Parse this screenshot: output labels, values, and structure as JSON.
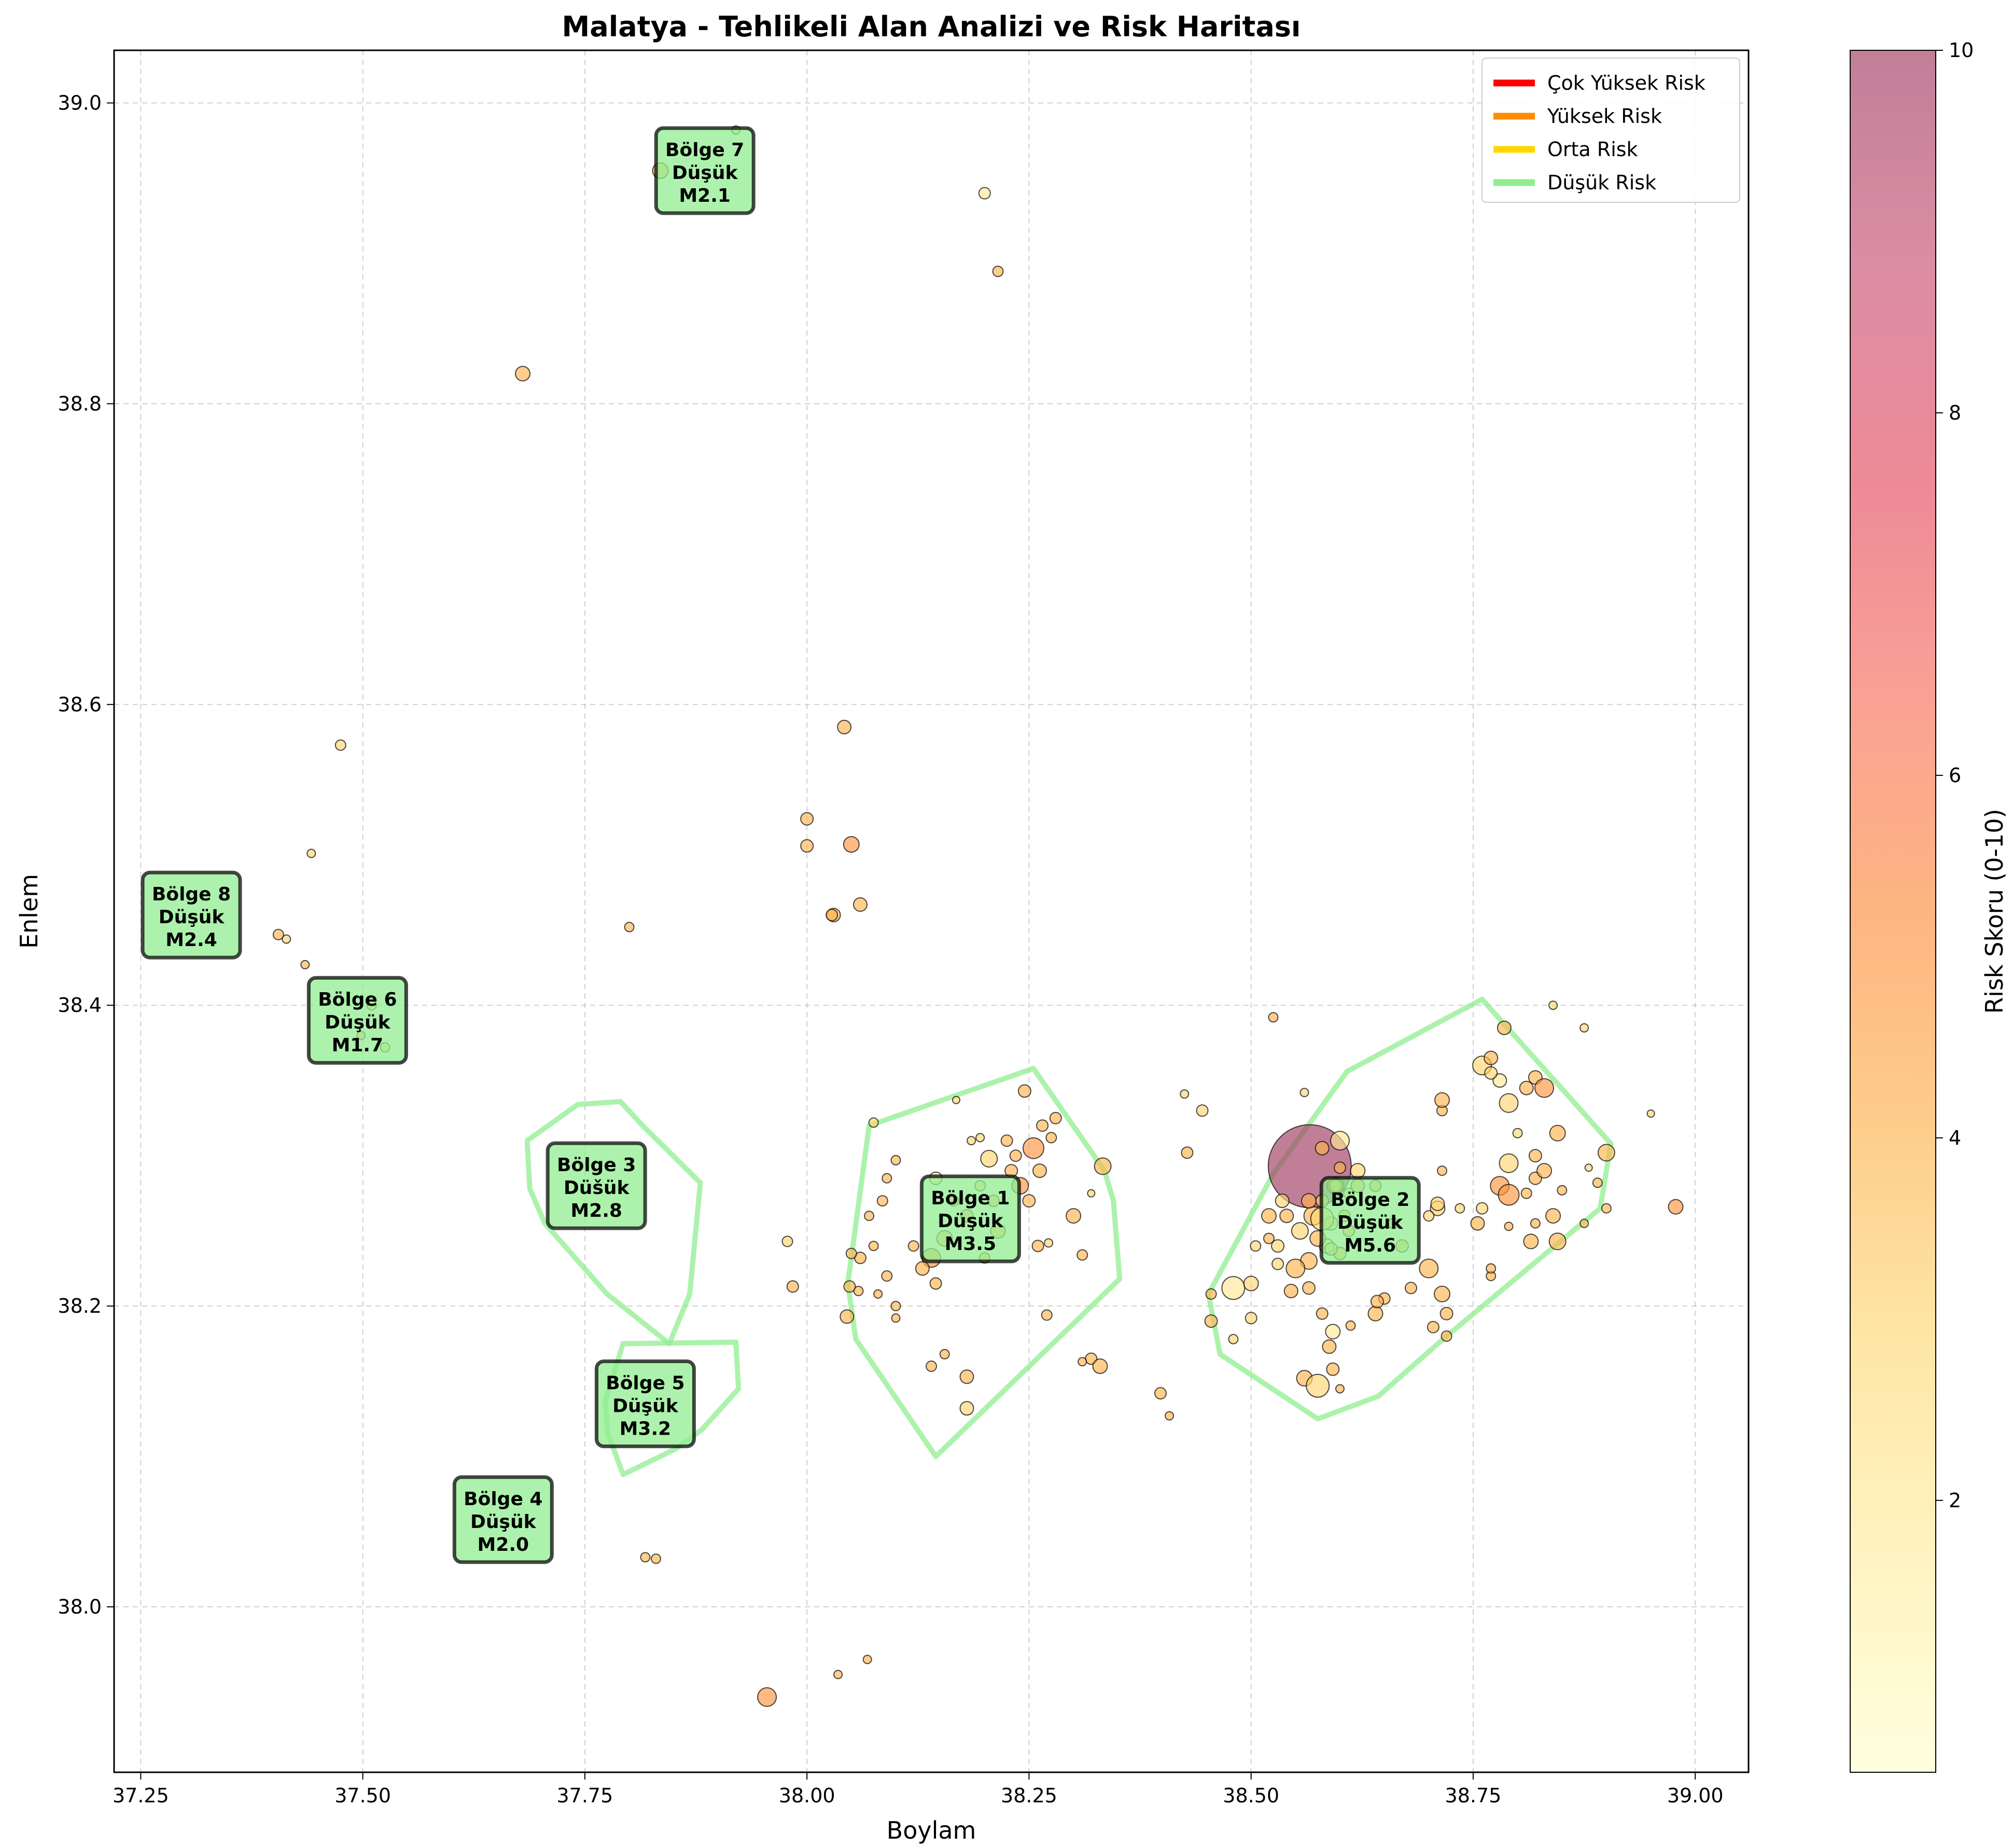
{
  "chart_data": {
    "type": "scatter",
    "title": "Malatya - Tehlikeli Alan Analizi ve Risk Haritası",
    "xlabel": "Boylam",
    "ylabel": "Enlem",
    "xlim": [
      37.22,
      39.06
    ],
    "ylim": [
      37.89,
      39.035
    ],
    "xticks": [
      "37.25",
      "37.50",
      "37.75",
      "38.00",
      "38.25",
      "38.50",
      "38.75",
      "39.00"
    ],
    "yticks": [
      "38.0",
      "38.2",
      "38.4",
      "38.6",
      "38.8",
      "39.0"
    ],
    "grid": true,
    "legend": {
      "placement": "top-right",
      "entries": [
        {
          "label": "Çok Yüksek Risk",
          "color": "#ff0000"
        },
        {
          "label": "Yüksek Risk",
          "color": "#ff8c00"
        },
        {
          "label": "Orta Risk",
          "color": "#ffd700"
        },
        {
          "label": "Düşük Risk",
          "color": "#90ee90"
        }
      ]
    },
    "colorbar": {
      "label": "Risk Skoru (0-10)",
      "min": 0.5,
      "max": 10,
      "ticks": [
        "2",
        "4",
        "6",
        "8",
        "10"
      ],
      "tick_values": [
        2,
        4,
        6,
        8,
        10
      ],
      "colors": [
        "#ffffcc",
        "#ffeda0",
        "#fed976",
        "#feb24c",
        "#fd8d3c",
        "#f76e5c",
        "#e34a5f",
        "#c75072",
        "#a03a60"
      ]
    },
    "regions": [
      {
        "label": "Bölge 1",
        "risk": "Düşük",
        "mag": "M3.5",
        "x": 38.184,
        "y": 38.258,
        "hull": [
          [
            38.07,
            38.32
          ],
          [
            38.255,
            38.358
          ],
          [
            38.335,
            38.29
          ],
          [
            38.345,
            38.27
          ],
          [
            38.352,
            38.218
          ],
          [
            38.145,
            38.1
          ],
          [
            38.055,
            38.178
          ],
          [
            38.046,
            38.215
          ]
        ]
      },
      {
        "label": "Bölge 2",
        "risk": "Düşük",
        "mag": "M5.6",
        "x": 38.634,
        "y": 38.257,
        "hull": [
          [
            38.608,
            38.356
          ],
          [
            38.76,
            38.404
          ],
          [
            38.905,
            38.308
          ],
          [
            38.893,
            38.265
          ],
          [
            38.72,
            38.18
          ],
          [
            38.643,
            38.14
          ],
          [
            38.575,
            38.125
          ],
          [
            38.465,
            38.168
          ],
          [
            38.452,
            38.208
          ],
          [
            38.525,
            38.288
          ]
        ]
      },
      {
        "label": "Bölge 3",
        "risk": "Düšük",
        "mag": "M2.8",
        "x": 37.763,
        "y": 38.28,
        "hull": [
          [
            37.685,
            38.31
          ],
          [
            37.742,
            38.334
          ],
          [
            37.79,
            38.336
          ],
          [
            37.815,
            38.32
          ],
          [
            37.88,
            38.282
          ],
          [
            37.868,
            38.208
          ],
          [
            37.845,
            38.175
          ],
          [
            37.775,
            38.208
          ],
          [
            37.705,
            38.255
          ],
          [
            37.688,
            38.278
          ]
        ]
      },
      {
        "label": "Bölge 4",
        "risk": "Düşük",
        "mag": "M2.0",
        "x": 37.658,
        "y": 38.058
      },
      {
        "label": "Bölge 5",
        "risk": "Düşük",
        "mag": "M3.2",
        "x": 37.818,
        "y": 38.135,
        "hull": [
          [
            37.793,
            38.175
          ],
          [
            37.92,
            38.176
          ],
          [
            37.923,
            38.145
          ],
          [
            37.882,
            38.118
          ],
          [
            37.852,
            38.105
          ],
          [
            37.793,
            38.088
          ],
          [
            37.776,
            38.115
          ],
          [
            37.773,
            38.137
          ]
        ]
      },
      {
        "label": "Bölge 6",
        "risk": "Düşük",
        "mag": "M1.7",
        "x": 37.494,
        "y": 38.39
      },
      {
        "label": "Bölge 7",
        "risk": "Düşük",
        "mag": "M2.1",
        "x": 37.885,
        "y": 38.955
      },
      {
        "label": "Bölge 8",
        "risk": "Düşük",
        "mag": "M2.4",
        "x": 37.307,
        "y": 38.46
      }
    ],
    "points": [
      [
        38.566,
        38.293,
        10,
        80
      ],
      [
        38.2,
        38.94,
        2,
        11
      ],
      [
        38.215,
        38.888,
        4,
        10
      ],
      [
        37.68,
        38.82,
        4,
        14
      ],
      [
        37.92,
        38.982,
        3,
        8
      ],
      [
        37.835,
        38.955,
        4,
        15
      ],
      [
        37.475,
        38.573,
        3,
        10
      ],
      [
        37.442,
        38.501,
        3,
        8
      ],
      [
        37.405,
        38.447,
        4,
        10
      ],
      [
        37.414,
        38.444,
        3,
        8
      ],
      [
        37.435,
        38.427,
        4,
        8
      ],
      [
        37.51,
        38.4,
        3,
        9
      ],
      [
        37.525,
        38.372,
        3,
        9
      ],
      [
        37.498,
        38.38,
        4,
        8
      ],
      [
        38.042,
        38.585,
        4,
        13
      ],
      [
        38.0,
        38.524,
        4,
        12
      ],
      [
        38.0,
        38.506,
        4,
        12
      ],
      [
        38.05,
        38.507,
        5,
        15
      ],
      [
        38.06,
        38.467,
        4,
        13
      ],
      [
        38.03,
        38.46,
        4,
        13
      ],
      [
        38.028,
        38.46,
        4,
        11
      ],
      [
        37.8,
        38.452,
        4,
        9
      ],
      [
        37.978,
        38.243,
        3,
        10
      ],
      [
        37.984,
        38.213,
        4,
        11
      ],
      [
        37.955,
        37.94,
        5,
        18
      ],
      [
        38.035,
        37.955,
        4,
        8
      ],
      [
        38.068,
        37.965,
        4,
        8
      ],
      [
        37.818,
        38.033,
        4,
        9
      ],
      [
        37.83,
        38.032,
        4,
        9
      ],
      [
        38.398,
        38.142,
        4,
        11
      ],
      [
        38.408,
        38.127,
        4,
        8
      ],
      [
        38.428,
        38.302,
        4,
        11
      ],
      [
        38.445,
        38.33,
        3,
        11
      ],
      [
        38.425,
        38.341,
        3,
        8
      ],
      [
        38.525,
        38.392,
        4,
        9
      ],
      [
        38.84,
        38.4,
        3,
        8
      ],
      [
        38.875,
        38.385,
        3,
        8
      ],
      [
        38.95,
        38.328,
        3,
        7
      ],
      [
        38.978,
        38.266,
        5,
        14
      ],
      [
        38.145,
        38.285,
        2,
        12
      ],
      [
        38.165,
        38.27,
        4,
        10
      ],
      [
        38.155,
        38.245,
        4,
        15
      ],
      [
        38.14,
        38.232,
        5,
        18
      ],
      [
        38.13,
        38.225,
        4,
        13
      ],
      [
        38.12,
        38.24,
        4,
        10
      ],
      [
        38.18,
        38.26,
        4,
        12
      ],
      [
        38.195,
        38.28,
        3,
        10
      ],
      [
        38.21,
        38.27,
        4,
        11
      ],
      [
        38.215,
        38.25,
        4,
        14
      ],
      [
        38.23,
        38.29,
        4,
        12
      ],
      [
        38.235,
        38.3,
        4,
        11
      ],
      [
        38.24,
        38.28,
        5,
        16
      ],
      [
        38.25,
        38.27,
        4,
        12
      ],
      [
        38.255,
        38.305,
        5,
        20
      ],
      [
        38.262,
        38.29,
        4,
        13
      ],
      [
        38.245,
        38.343,
        4,
        12
      ],
      [
        38.225,
        38.31,
        4,
        11
      ],
      [
        38.205,
        38.298,
        3,
        16
      ],
      [
        38.185,
        38.31,
        3,
        8
      ],
      [
        38.168,
        38.337,
        3,
        7
      ],
      [
        38.1,
        38.297,
        4,
        9
      ],
      [
        38.09,
        38.285,
        4,
        9
      ],
      [
        38.085,
        38.27,
        4,
        10
      ],
      [
        38.07,
        38.26,
        4,
        9
      ],
      [
        38.075,
        38.24,
        4,
        9
      ],
      [
        38.06,
        38.232,
        4,
        11
      ],
      [
        38.058,
        38.21,
        4,
        9
      ],
      [
        38.048,
        38.213,
        4,
        11
      ],
      [
        38.09,
        38.22,
        4,
        10
      ],
      [
        38.1,
        38.192,
        4,
        8
      ],
      [
        38.1,
        38.2,
        4,
        9
      ],
      [
        38.08,
        38.208,
        4,
        8
      ],
      [
        38.075,
        38.322,
        3,
        9
      ],
      [
        38.2,
        38.232,
        4,
        10
      ],
      [
        38.26,
        38.24,
        4,
        11
      ],
      [
        38.272,
        38.242,
        3,
        8
      ],
      [
        38.27,
        38.194,
        4,
        10
      ],
      [
        38.3,
        38.26,
        4,
        14
      ],
      [
        38.31,
        38.234,
        4,
        10
      ],
      [
        38.32,
        38.275,
        3,
        7
      ],
      [
        38.333,
        38.293,
        4,
        16
      ],
      [
        38.32,
        38.165,
        4,
        11
      ],
      [
        38.31,
        38.163,
        4,
        8
      ],
      [
        38.33,
        38.16,
        4,
        14
      ],
      [
        38.18,
        38.153,
        4,
        13
      ],
      [
        38.18,
        38.132,
        3,
        13
      ],
      [
        38.14,
        38.16,
        4,
        10
      ],
      [
        38.155,
        38.168,
        4,
        9
      ],
      [
        38.045,
        38.193,
        4,
        13
      ],
      [
        38.05,
        38.235,
        4,
        10
      ],
      [
        38.28,
        38.325,
        4,
        11
      ],
      [
        38.275,
        38.312,
        4,
        10
      ],
      [
        38.265,
        38.32,
        4,
        11
      ],
      [
        38.195,
        38.312,
        3,
        8
      ],
      [
        38.145,
        38.215,
        4,
        11
      ],
      [
        38.58,
        38.305,
        4,
        13
      ],
      [
        38.6,
        38.31,
        2,
        18
      ],
      [
        38.62,
        38.28,
        4,
        13
      ],
      [
        38.595,
        38.28,
        4,
        16
      ],
      [
        38.58,
        38.27,
        3,
        12
      ],
      [
        38.57,
        38.26,
        4,
        18
      ],
      [
        38.555,
        38.25,
        3,
        16
      ],
      [
        38.54,
        38.26,
        4,
        13
      ],
      [
        38.53,
        38.24,
        3,
        12
      ],
      [
        38.565,
        38.23,
        4,
        16
      ],
      [
        38.585,
        38.24,
        2,
        14
      ],
      [
        38.6,
        38.235,
        4,
        12
      ],
      [
        38.61,
        38.25,
        4,
        11
      ],
      [
        38.59,
        38.255,
        3,
        13
      ],
      [
        38.575,
        38.245,
        4,
        15
      ],
      [
        38.55,
        38.225,
        4,
        18
      ],
      [
        38.565,
        38.212,
        4,
        12
      ],
      [
        38.58,
        38.195,
        4,
        11
      ],
      [
        38.592,
        38.183,
        2,
        14
      ],
      [
        38.588,
        38.173,
        4,
        13
      ],
      [
        38.56,
        38.152,
        4,
        15
      ],
      [
        38.575,
        38.147,
        3,
        22
      ],
      [
        38.592,
        38.158,
        4,
        12
      ],
      [
        38.6,
        38.145,
        4,
        8
      ],
      [
        38.612,
        38.187,
        4,
        9
      ],
      [
        38.64,
        38.195,
        4,
        14
      ],
      [
        38.65,
        38.205,
        4,
        11
      ],
      [
        38.642,
        38.203,
        4,
        12
      ],
      [
        38.68,
        38.212,
        4,
        11
      ],
      [
        38.7,
        38.225,
        4,
        18
      ],
      [
        38.71,
        38.265,
        3,
        14
      ],
      [
        38.715,
        38.208,
        4,
        15
      ],
      [
        38.705,
        38.186,
        4,
        11
      ],
      [
        38.72,
        38.195,
        4,
        12
      ],
      [
        38.72,
        38.18,
        4,
        10
      ],
      [
        38.48,
        38.212,
        2,
        22
      ],
      [
        38.5,
        38.215,
        3,
        14
      ],
      [
        38.5,
        38.192,
        3,
        11
      ],
      [
        38.48,
        38.178,
        3,
        9
      ],
      [
        38.455,
        38.19,
        4,
        12
      ],
      [
        38.455,
        38.208,
        4,
        10
      ],
      [
        38.505,
        38.24,
        3,
        10
      ],
      [
        38.52,
        38.26,
        4,
        14
      ],
      [
        38.535,
        38.27,
        3,
        13
      ],
      [
        38.595,
        38.28,
        3,
        12
      ],
      [
        38.61,
        38.275,
        3,
        10
      ],
      [
        38.64,
        38.28,
        4,
        11
      ],
      [
        38.66,
        38.255,
        4,
        10
      ],
      [
        38.67,
        38.24,
        4,
        12
      ],
      [
        38.7,
        38.26,
        3,
        10
      ],
      [
        38.71,
        38.268,
        3,
        13
      ],
      [
        38.715,
        38.29,
        4,
        9
      ],
      [
        38.715,
        38.33,
        4,
        10
      ],
      [
        38.715,
        38.337,
        4,
        14
      ],
      [
        38.735,
        38.265,
        3,
        9
      ],
      [
        38.76,
        38.36,
        3,
        18
      ],
      [
        38.77,
        38.365,
        4,
        13
      ],
      [
        38.78,
        38.35,
        2,
        13
      ],
      [
        38.77,
        38.355,
        3,
        12
      ],
      [
        38.785,
        38.385,
        4,
        13
      ],
      [
        38.79,
        38.335,
        3,
        18
      ],
      [
        38.8,
        38.315,
        3,
        9
      ],
      [
        38.81,
        38.345,
        4,
        13
      ],
      [
        38.82,
        38.352,
        4,
        13
      ],
      [
        38.83,
        38.345,
        5,
        18
      ],
      [
        38.845,
        38.315,
        4,
        15
      ],
      [
        38.82,
        38.3,
        4,
        12
      ],
      [
        38.82,
        38.285,
        4,
        12
      ],
      [
        38.83,
        38.29,
        4,
        14
      ],
      [
        38.79,
        38.295,
        3,
        18
      ],
      [
        38.78,
        38.28,
        5,
        18
      ],
      [
        38.79,
        38.274,
        5,
        20
      ],
      [
        38.81,
        38.275,
        4,
        10
      ],
      [
        38.82,
        38.255,
        4,
        9
      ],
      [
        38.84,
        38.26,
        4,
        14
      ],
      [
        38.85,
        38.277,
        4,
        9
      ],
      [
        38.845,
        38.243,
        4,
        16
      ],
      [
        38.815,
        38.243,
        4,
        14
      ],
      [
        38.79,
        38.253,
        4,
        8
      ],
      [
        38.77,
        38.22,
        4,
        9
      ],
      [
        38.77,
        38.225,
        4,
        9
      ],
      [
        38.76,
        38.265,
        3,
        11
      ],
      [
        38.755,
        38.255,
        4,
        13
      ],
      [
        38.88,
        38.292,
        3,
        7
      ],
      [
        38.89,
        38.282,
        4,
        9
      ],
      [
        38.9,
        38.302,
        4,
        16
      ],
      [
        38.875,
        38.255,
        4,
        8
      ],
      [
        38.9,
        38.265,
        4,
        9
      ],
      [
        38.52,
        38.245,
        4,
        10
      ],
      [
        38.53,
        38.228,
        3,
        11
      ],
      [
        38.545,
        38.21,
        4,
        13
      ],
      [
        38.6,
        38.292,
        4,
        11
      ],
      [
        38.62,
        38.29,
        3,
        14
      ],
      [
        38.56,
        38.342,
        3,
        8
      ],
      [
        38.565,
        38.27,
        4,
        14
      ],
      [
        38.59,
        38.238,
        3,
        12
      ],
      [
        38.58,
        38.258,
        3,
        22
      ],
      [
        38.605,
        38.26,
        4,
        11
      ]
    ]
  }
}
